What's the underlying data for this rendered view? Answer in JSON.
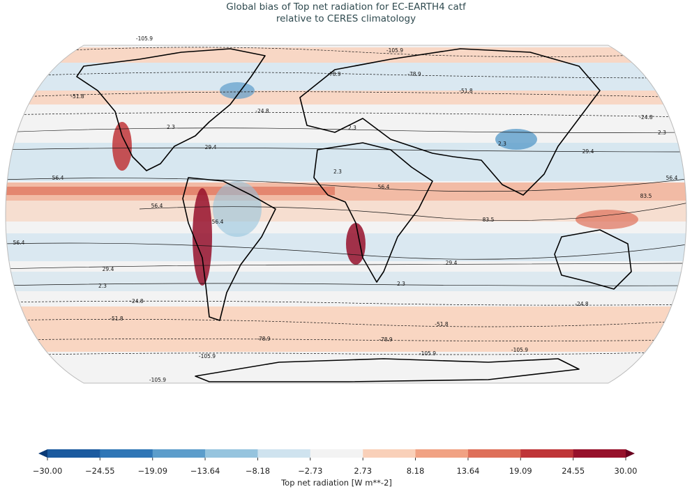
{
  "title": [
    "Global bias of Top net radiation for EC-EARTH4 catf",
    "relative to CERES climatology"
  ],
  "map": {
    "contour_labels": [
      "-105.9",
      "-105.9",
      "-105.9",
      "-105.9",
      "-105.9",
      "-105.9",
      "-78.9",
      "-78.9",
      "-78.9",
      "-78.9",
      "-51.8",
      "-51.8",
      "-51.8",
      "-51.8",
      "-24.8",
      "-24.8",
      "-24.8",
      "-24.8",
      "2.3",
      "2.3",
      "2.3",
      "2.3",
      "2.3",
      "2.3",
      "2.3",
      "29.4",
      "29.4",
      "29.4",
      "29.4",
      "56.4",
      "56.4",
      "56.4",
      "56.4",
      "56.4",
      "56.4",
      "83.5",
      "83.5"
    ]
  },
  "colorbar": {
    "label": "Top net radiation [W m**-2]",
    "ticks": [
      {
        "value": -30,
        "label": "−30.00"
      },
      {
        "value": -24.55,
        "label": "−24.55"
      },
      {
        "value": -19.09,
        "label": "−19.09"
      },
      {
        "value": -13.64,
        "label": "−13.64"
      },
      {
        "value": -8.18,
        "label": "−8.18"
      },
      {
        "value": -2.73,
        "label": "−2.73"
      },
      {
        "value": 2.73,
        "label": "2.73"
      },
      {
        "value": 8.18,
        "label": "8.18"
      },
      {
        "value": 13.64,
        "label": "13.64"
      },
      {
        "value": 19.09,
        "label": "19.09"
      },
      {
        "value": 24.55,
        "label": "24.55"
      },
      {
        "value": 30,
        "label": "30.00"
      }
    ],
    "colors": [
      "#1b5a9f",
      "#2f76b6",
      "#5c9dcb",
      "#96c4de",
      "#cfe3ef",
      "#f3f3f3",
      "#f9d0b9",
      "#f1a283",
      "#de6f59",
      "#bf3538",
      "#97112b"
    ],
    "extend_colors": [
      "#0a3a76",
      "#6a001f"
    ]
  }
}
